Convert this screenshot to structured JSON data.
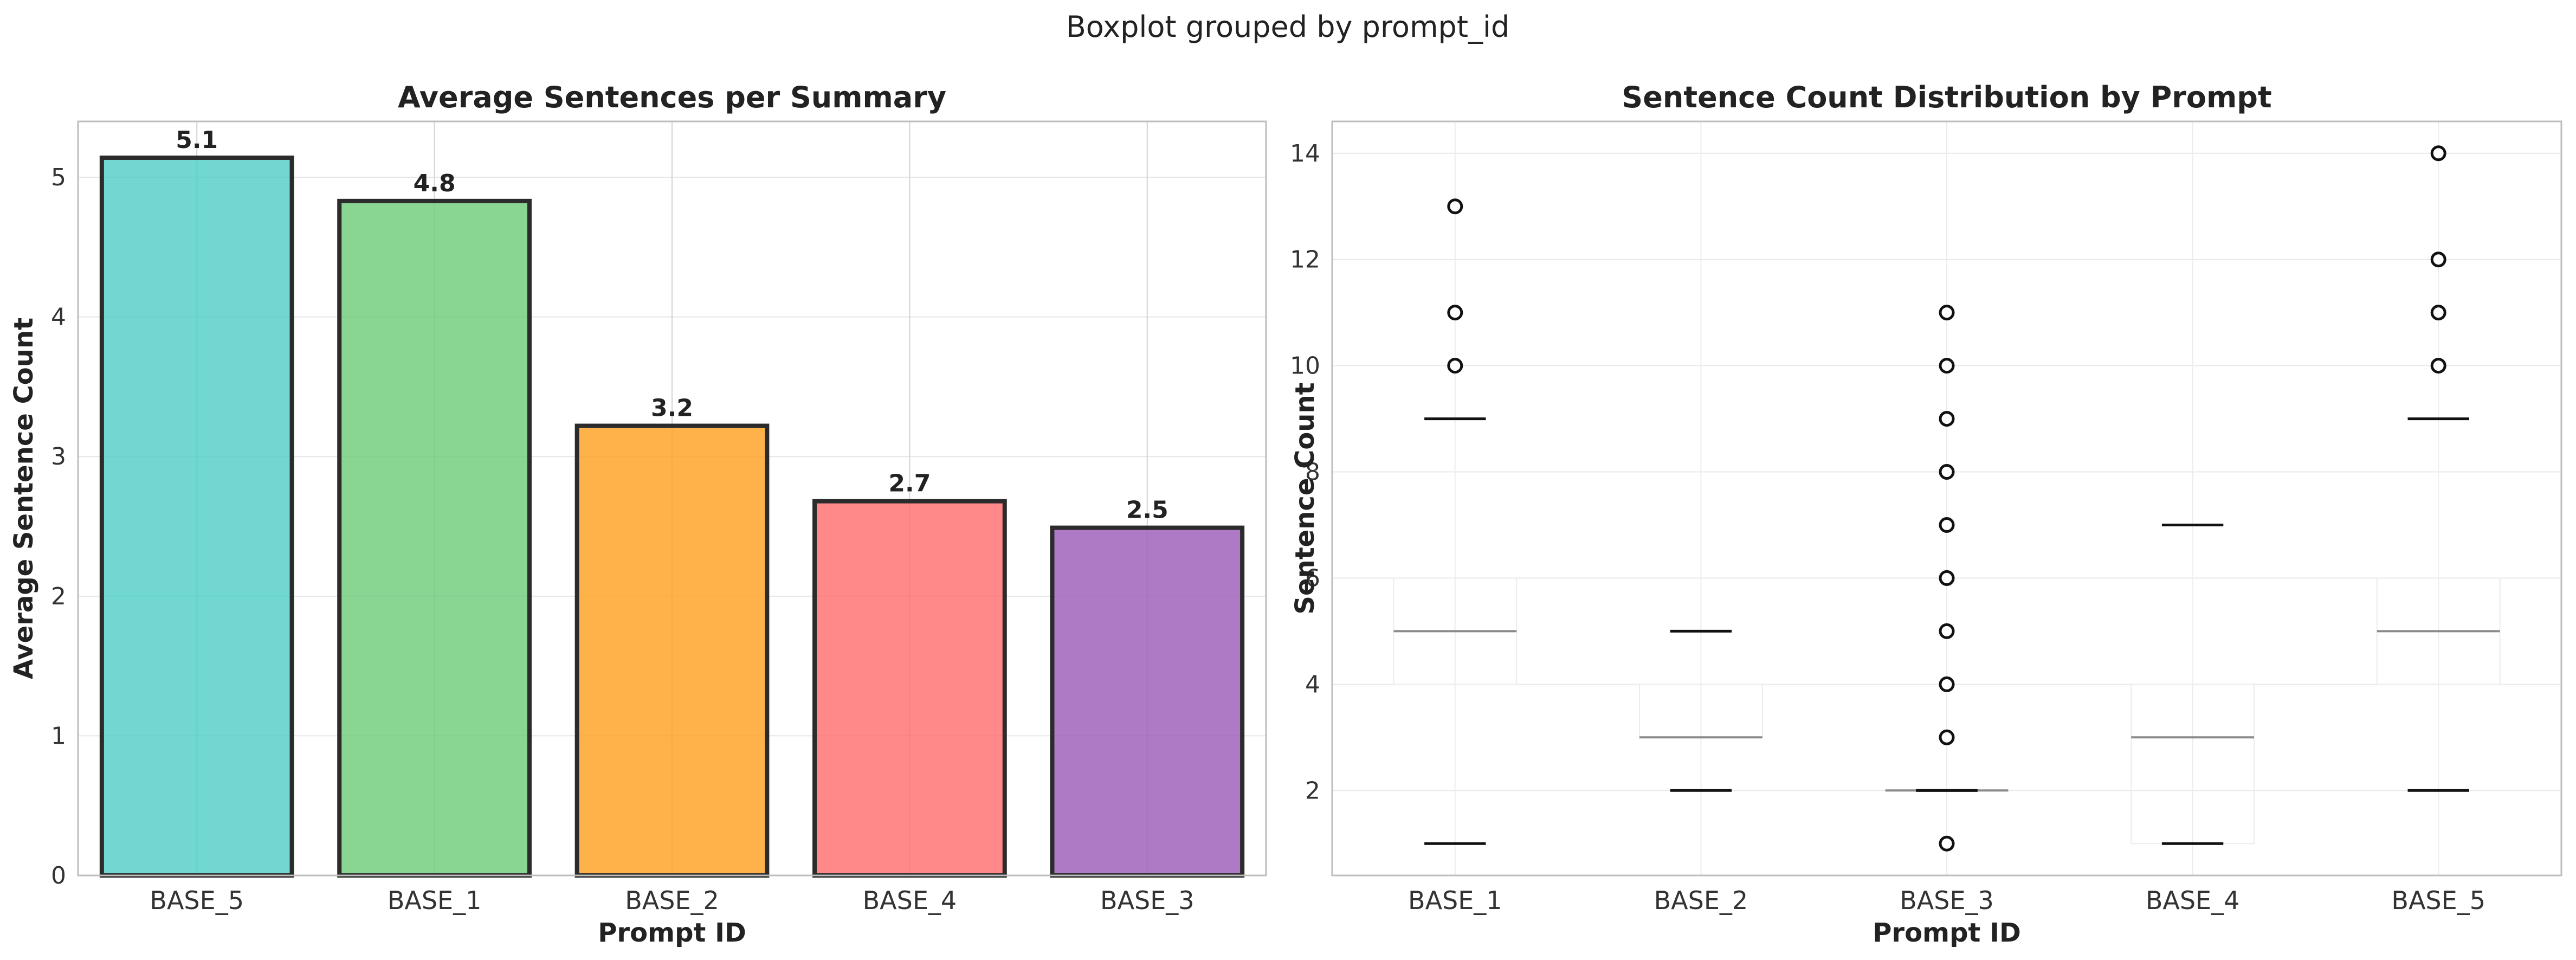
{
  "figure": {
    "suptitle": "Boxplot grouped by prompt_id"
  },
  "chart_data": [
    {
      "type": "bar",
      "title": "Average Sentences per Summary",
      "xlabel": "Prompt ID",
      "ylabel": "Average Sentence Count",
      "categories": [
        "BASE_5",
        "BASE_1",
        "BASE_2",
        "BASE_4",
        "BASE_3"
      ],
      "values": [
        5.14,
        4.83,
        3.22,
        2.68,
        2.49
      ],
      "data_labels": [
        "5.1",
        "4.8",
        "3.2",
        "2.7",
        "2.5"
      ],
      "colors": [
        "#4ECDC4",
        "#6BCB77",
        "#FF9F1C",
        "#FF6B6B",
        "#9B59B6"
      ],
      "ylim": [
        0,
        5.4
      ],
      "yticks": [
        0,
        1,
        2,
        3,
        4,
        5
      ],
      "grid": true
    },
    {
      "type": "box",
      "title": "Sentence Count Distribution by Prompt",
      "xlabel": "Prompt ID",
      "ylabel": "Sentence Count",
      "categories": [
        "BASE_1",
        "BASE_2",
        "BASE_3",
        "BASE_4",
        "BASE_5"
      ],
      "boxes": [
        {
          "whisker_low": 1,
          "q1": 4,
          "median": 5,
          "q3": 6,
          "whisker_high": 9,
          "outliers": [
            10,
            11,
            13
          ]
        },
        {
          "whisker_low": 2,
          "q1": 3,
          "median": 3,
          "q3": 4,
          "whisker_high": 5,
          "outliers": []
        },
        {
          "whisker_low": 2,
          "q1": 2,
          "median": 2,
          "q3": 2,
          "whisker_high": 2,
          "outliers": [
            1,
            3,
            4,
            5,
            6,
            7,
            8,
            9,
            10,
            11
          ]
        },
        {
          "whisker_low": 1,
          "q1": 1,
          "median": 3,
          "q3": 4,
          "whisker_high": 7,
          "outliers": []
        },
        {
          "whisker_low": 2,
          "q1": 4,
          "median": 5,
          "q3": 6,
          "whisker_high": 9,
          "outliers": [
            10,
            11,
            12,
            14
          ]
        }
      ],
      "ylim": [
        0.4,
        14.6
      ],
      "yticks": [
        2,
        4,
        6,
        8,
        10,
        12,
        14
      ],
      "grid": true
    }
  ]
}
